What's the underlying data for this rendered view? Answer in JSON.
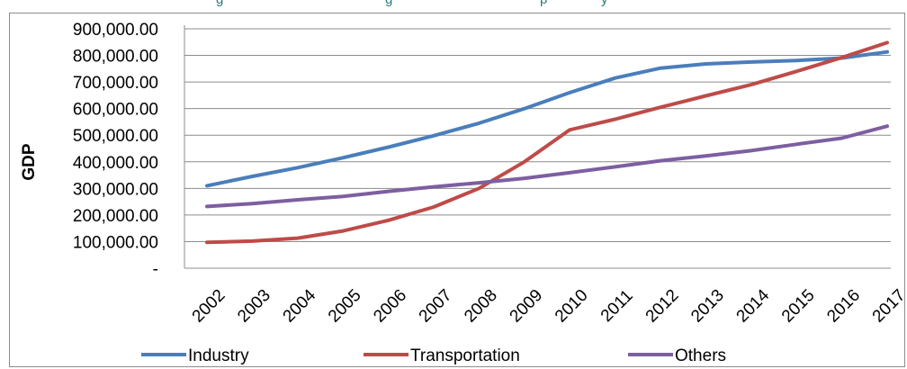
{
  "chart_data": {
    "type": "line",
    "title": "",
    "xlabel": "",
    "ylabel": "GDP",
    "ylim": [
      0,
      900000
    ],
    "y_ticks": [
      "-",
      "100,000.00",
      "200,000.00",
      "300,000.00",
      "400,000.00",
      "500,000.00",
      "600,000.00",
      "700,000.00",
      "800,000.00",
      "900,000.00"
    ],
    "categories": [
      "2002",
      "2003",
      "2004",
      "2005",
      "2006",
      "2007",
      "2008",
      "2009",
      "2010",
      "2011",
      "2012",
      "2013",
      "2014",
      "2015",
      "2016",
      "2017"
    ],
    "series": [
      {
        "name": "Industry",
        "color": "#4a7ebb",
        "values": [
          310000,
          345000,
          378000,
          415000,
          455000,
          498000,
          545000,
          600000,
          660000,
          715000,
          752000,
          768000,
          775000,
          781000,
          790000,
          813000
        ]
      },
      {
        "name": "Transportation",
        "color": "#be4b48",
        "values": [
          97000,
          102000,
          113000,
          140000,
          180000,
          230000,
          300000,
          400000,
          520000,
          560000,
          605000,
          648000,
          690000,
          740000,
          792000,
          848000
        ]
      },
      {
        "name": "Others",
        "color": "#7d5fa0",
        "values": [
          232000,
          243000,
          257000,
          270000,
          289000,
          306000,
          321000,
          338000,
          359000,
          381000,
          404000,
          422000,
          442000,
          466000,
          489000,
          534000
        ]
      }
    ],
    "grid": true,
    "legend_position": "bottom"
  }
}
